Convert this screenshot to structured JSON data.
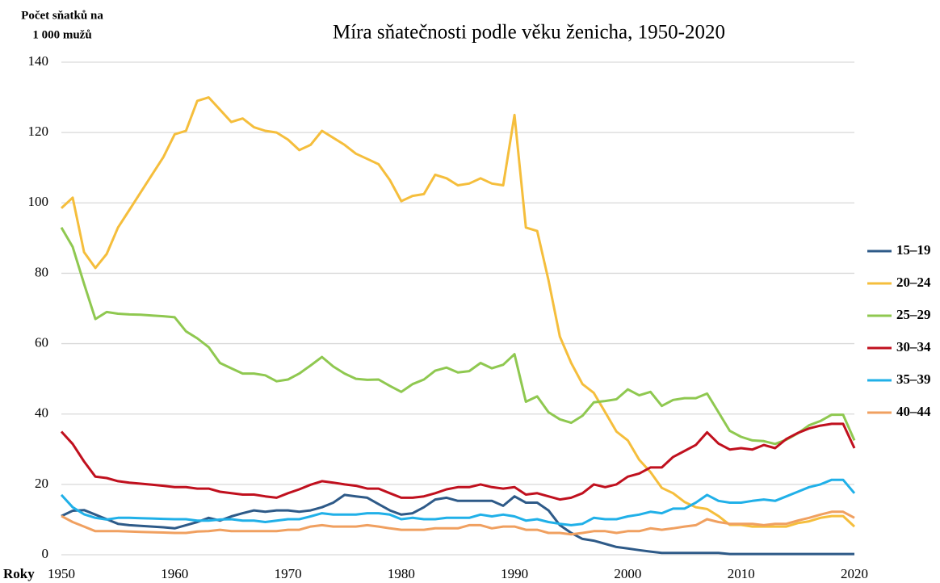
{
  "chart_data": {
    "type": "line",
    "title": "Míra sňatečnosti podle věku ženicha, 1950-2020",
    "y_label": [
      "Počet sňatků na",
      "1 000 mužů"
    ],
    "x_label": "Roky",
    "x": [
      1950,
      1951,
      1952,
      1953,
      1954,
      1955,
      1956,
      1957,
      1958,
      1959,
      1960,
      1961,
      1962,
      1963,
      1964,
      1965,
      1966,
      1967,
      1968,
      1969,
      1970,
      1971,
      1972,
      1973,
      1974,
      1975,
      1976,
      1977,
      1978,
      1979,
      1980,
      1981,
      1982,
      1983,
      1984,
      1985,
      1986,
      1987,
      1988,
      1989,
      1990,
      1991,
      1992,
      1993,
      1994,
      1995,
      1996,
      1997,
      1998,
      1999,
      2000,
      2001,
      2002,
      2003,
      2004,
      2005,
      2006,
      2007,
      2008,
      2009,
      2010,
      2011,
      2012,
      2013,
      2014,
      2015,
      2016,
      2017,
      2018,
      2019,
      2020
    ],
    "xlim": [
      1950,
      2020
    ],
    "xticks": [
      1950,
      1960,
      1970,
      1980,
      1990,
      2000,
      2010,
      2020
    ],
    "ylim": [
      0,
      140
    ],
    "yticks": [
      0,
      20,
      40,
      60,
      80,
      100,
      120,
      140
    ],
    "grid": true,
    "legend": "right",
    "series": [
      {
        "name": "15–19",
        "color": "#2e5a88",
        "values": [
          11,
          12.5,
          12.7,
          11.4,
          10.1,
          8.8,
          8.4,
          8.2,
          8,
          7.8,
          7.5,
          8.4,
          9.3,
          10.5,
          9.7,
          10.9,
          11.8,
          12.6,
          12.2,
          12.6,
          12.6,
          12.2,
          12.6,
          13.5,
          14.8,
          17,
          16.6,
          16.2,
          14.4,
          12.6,
          11.4,
          11.8,
          13.5,
          15.7,
          16.2,
          15.3,
          15.3,
          15.3,
          15.3,
          13.9,
          16.6,
          14.8,
          14.8,
          12.6,
          8.4,
          6.2,
          4.5,
          4,
          3.1,
          2.2,
          1.8,
          1.3,
          0.9,
          0.5,
          0.5,
          0.5,
          0.5,
          0.5,
          0.5,
          0.2,
          0.2,
          0.2,
          0.2,
          0.2,
          0.2,
          0.2,
          0.2,
          0.2,
          0.2,
          0.2,
          0.2
        ]
      },
      {
        "name": "20–24",
        "color": "#f5be3c",
        "values": [
          98.5,
          101.5,
          86,
          81.5,
          85.5,
          93,
          98,
          103,
          108,
          113,
          119.5,
          120.5,
          129,
          130,
          126.5,
          123,
          124,
          121.5,
          120.5,
          120,
          118,
          115,
          116.5,
          120.5,
          118.5,
          116.5,
          114,
          112.5,
          111,
          106.5,
          100.5,
          102,
          102.5,
          108,
          107,
          105,
          105.5,
          107,
          105.5,
          105,
          125,
          93,
          92,
          78,
          62,
          54.5,
          48.5,
          46,
          40.5,
          35,
          32.5,
          27,
          23.5,
          19,
          17.5,
          15,
          13.5,
          13,
          11,
          8.5,
          8.5,
          8,
          8,
          8,
          8,
          9,
          9.5,
          10.5,
          11,
          11,
          8
        ]
      },
      {
        "name": "25–29",
        "color": "#8fc850",
        "values": [
          93,
          87.5,
          77,
          67,
          69,
          68.5,
          68.3,
          68.2,
          68,
          67.8,
          67.5,
          63.5,
          61.5,
          59,
          54.5,
          53,
          51.5,
          51.5,
          51,
          49.3,
          49.8,
          51.5,
          53.8,
          56.2,
          53.5,
          51.5,
          50,
          49.7,
          49.8,
          48,
          46.3,
          48.5,
          49.8,
          52.3,
          53.2,
          51.8,
          52.2,
          54.5,
          53,
          54,
          57,
          43.5,
          45,
          40.5,
          38.5,
          37.5,
          39.5,
          43.3,
          43.7,
          44.2,
          47,
          45.3,
          46.3,
          42.3,
          44,
          44.5,
          44.5,
          45.8,
          40.5,
          35.2,
          33.5,
          32.5,
          32.3,
          31.5,
          32.7,
          34.5,
          36.8,
          38,
          39.8,
          39.8,
          32.5
        ]
      },
      {
        "name": "30–34",
        "color": "#c0101e",
        "values": [
          35,
          31.5,
          26.5,
          22.2,
          21.8,
          20.9,
          20.5,
          20.2,
          19.9,
          19.6,
          19.2,
          19.2,
          18.8,
          18.8,
          17.9,
          17.5,
          17.1,
          17.1,
          16.6,
          16.2,
          17.5,
          18.6,
          19.9,
          20.9,
          20.5,
          20,
          19.6,
          18.8,
          18.8,
          17.5,
          16.2,
          16.2,
          16.6,
          17.5,
          18.6,
          19.2,
          19.2,
          20,
          19.2,
          18.8,
          19.2,
          17.1,
          17.5,
          16.6,
          15.7,
          16.2,
          17.5,
          20,
          19.2,
          20,
          22.2,
          23.1,
          24.8,
          24.8,
          27.8,
          29.5,
          31.2,
          34.8,
          31.6,
          29.9,
          30.3,
          29.9,
          31.2,
          30.3,
          32.9,
          34.6,
          35.9,
          36.7,
          37.2,
          37.2,
          30.3
        ]
      },
      {
        "name": "35–39",
        "color": "#20b0e8",
        "values": [
          17,
          13.5,
          11.5,
          10.5,
          10,
          10.5,
          10.5,
          10.4,
          10.3,
          10.2,
          10.1,
          10.1,
          9.7,
          9.7,
          10,
          10.1,
          9.7,
          9.7,
          9.3,
          9.7,
          10.1,
          10.1,
          10.9,
          11.8,
          11.4,
          11.4,
          11.4,
          11.8,
          11.8,
          11.4,
          10.1,
          10.5,
          10.1,
          10.1,
          10.5,
          10.5,
          10.5,
          11.4,
          10.9,
          11.4,
          10.9,
          9.7,
          10.1,
          9.3,
          8.8,
          8.4,
          8.8,
          10.5,
          10.1,
          10.1,
          10.9,
          11.4,
          12.2,
          11.8,
          13.1,
          13.1,
          14.8,
          17,
          15.3,
          14.8,
          14.8,
          15.3,
          15.7,
          15.3,
          16.6,
          17.9,
          19.2,
          20,
          21.3,
          21.3,
          17.5
        ]
      },
      {
        "name": "40–44",
        "color": "#f0a060",
        "values": [
          11,
          9.3,
          8,
          6.7,
          6.7,
          6.7,
          6.6,
          6.5,
          6.4,
          6.3,
          6.2,
          6.2,
          6.6,
          6.7,
          7.1,
          6.7,
          6.7,
          6.7,
          6.7,
          6.7,
          7.1,
          7.1,
          8,
          8.4,
          8,
          8,
          8,
          8.4,
          8,
          7.5,
          7.1,
          7.1,
          7.1,
          7.5,
          7.5,
          7.5,
          8.4,
          8.4,
          7.5,
          8,
          8,
          7.1,
          7.1,
          6.2,
          6.2,
          5.8,
          6.2,
          6.7,
          6.7,
          6.2,
          6.7,
          6.7,
          7.5,
          7.1,
          7.5,
          8,
          8.4,
          10.1,
          9.3,
          8.8,
          8.8,
          8.8,
          8.4,
          8.8,
          8.8,
          9.7,
          10.5,
          11.4,
          12.2,
          12.2,
          10.5
        ]
      }
    ]
  }
}
